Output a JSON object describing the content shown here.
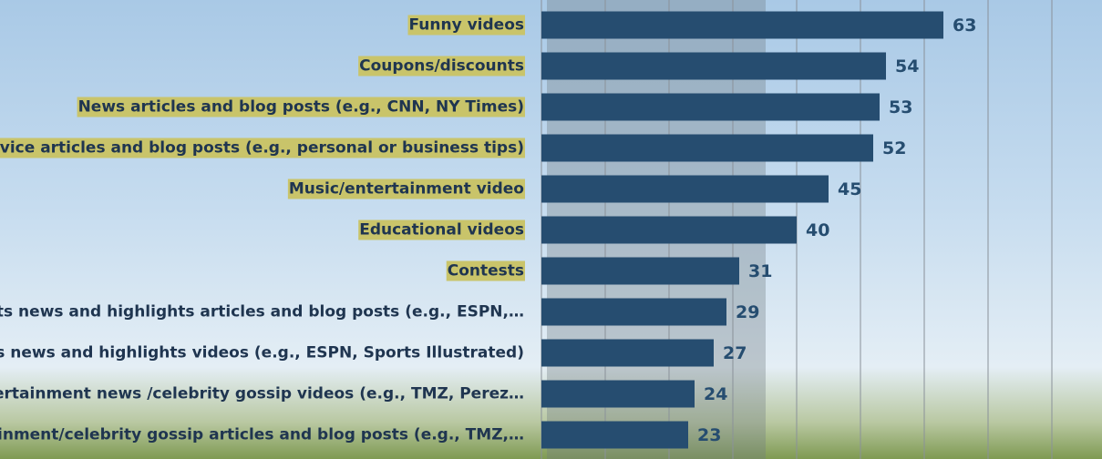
{
  "chart_data": {
    "type": "bar",
    "orientation": "horizontal",
    "categories": [
      "Funny videos",
      "Coupons/discounts",
      "News articles and blog posts (e.g., CNN, NY Times)",
      "Advice articles and blog posts (e.g., personal or business tips)",
      "Music/entertainment video",
      "Educational videos",
      "Contests",
      "Sports news and highlights articles and blog posts (e.g., ESPN,…",
      "Sports news and highlights videos (e.g., ESPN, Sports Illustrated)",
      "Entertainment news /celebrity gossip videos (e.g., TMZ, Perez…",
      "Entertainment/celebrity gossip articles and blog posts (e.g., TMZ,…"
    ],
    "values": [
      63,
      54,
      53,
      52,
      45,
      40,
      31,
      29,
      27,
      24,
      23
    ],
    "highlighted": [
      true,
      true,
      true,
      true,
      true,
      true,
      true,
      false,
      false,
      false,
      false
    ],
    "color": "#264d70",
    "xlim": [
      0,
      88
    ],
    "xticks": [
      0,
      10,
      20,
      30,
      40,
      50,
      60,
      70,
      80
    ],
    "grid": true
  }
}
